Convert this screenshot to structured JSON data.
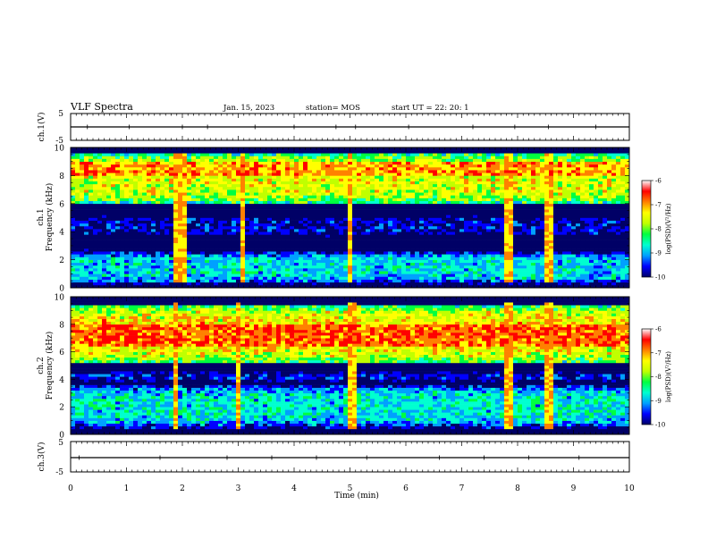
{
  "header": {
    "title": "VLF Spectra",
    "date": "Jan. 15, 2023",
    "station": "station= MOS",
    "start": "start  UT =   22: 20: 1"
  },
  "colors": {
    "cmap": [
      "#000066",
      "#0000ff",
      "#00a0ff",
      "#00ffd0",
      "#00ff40",
      "#c0ff00",
      "#ffff00",
      "#ff8000",
      "#ff0000",
      "#ffffff"
    ],
    "trace": "#000000",
    "axis": "#000000"
  },
  "chart_data": [
    {
      "type": "line",
      "name": "ch1-waveform",
      "ylabel": "ch.1(V)",
      "ylim": [
        -5,
        5
      ],
      "y_ticks": [
        "5",
        "-5"
      ],
      "xlim": [
        0,
        10
      ],
      "level": 0,
      "spikes_min": [
        0.3,
        1.05,
        2.0,
        2.45,
        3.3,
        4.0,
        4.75,
        5.1,
        6.05,
        7.2,
        7.95,
        8.55,
        9.4
      ]
    },
    {
      "type": "heatmap",
      "name": "ch1-spectrogram",
      "ylabel": "ch.1\nFrequency (kHz)",
      "ylabel_lines": [
        "ch.1",
        "Frequency (kHz)"
      ],
      "ylim": [
        0,
        10
      ],
      "y_ticks": [
        "0",
        "2",
        "4",
        "6",
        "8",
        "10"
      ],
      "xlim": [
        0,
        10
      ],
      "bands_khz": [
        {
          "from": 0.3,
          "to": 2.6,
          "log_psd": -8.6
        },
        {
          "from": 3.6,
          "to": 5.2,
          "log_psd": -9.5
        },
        {
          "from": 6.0,
          "to": 9.6,
          "log_psd": -7.3
        }
      ],
      "peak_band_khz": [
        8.0,
        9.0
      ],
      "bright_streaks_min": [
        1.9,
        2.0,
        3.1,
        5.0,
        7.85,
        8.55,
        8.6
      ],
      "colorbar": {
        "label": "log(PSD)(V²/Hz)",
        "range": [
          -10,
          -6
        ],
        "ticks": [
          "-6",
          "-7",
          "-8",
          "-9",
          "-10"
        ]
      }
    },
    {
      "type": "heatmap",
      "name": "ch2-spectrogram",
      "ylabel": "ch.2\nFrequency (kHz)",
      "ylabel_lines": [
        "ch.2",
        "Frequency (kHz)"
      ],
      "ylim": [
        0,
        10
      ],
      "y_ticks": [
        "0",
        "2",
        "4",
        "6",
        "8",
        "10"
      ],
      "xlim": [
        0,
        10
      ],
      "bands_khz": [
        {
          "from": 0.5,
          "to": 3.6,
          "log_psd": -8.5
        },
        {
          "from": 3.8,
          "to": 4.6,
          "log_psd": -9.4
        },
        {
          "from": 5.2,
          "to": 9.4,
          "log_psd": -7.1
        }
      ],
      "peak_band_khz": [
        6.5,
        8.0
      ],
      "bright_streaks_min": [
        1.9,
        3.0,
        5.05,
        7.85,
        8.55
      ],
      "colorbar": {
        "label": "log(PSD)(V²/Hz)",
        "range": [
          -10,
          -6
        ],
        "ticks": [
          "-6",
          "-7",
          "-8",
          "-9",
          "-10"
        ]
      }
    },
    {
      "type": "line",
      "name": "ch3-waveform",
      "ylabel": "ch.3(V)",
      "ylim": [
        -5,
        5
      ],
      "y_ticks": [
        "5",
        "-5"
      ],
      "xlim": [
        0,
        10
      ],
      "level": 0,
      "spikes_min": [
        0.15,
        1.6,
        2.8,
        3.6,
        4.4,
        5.3,
        6.6,
        7.4,
        8.2,
        9.1
      ],
      "xlabel": "Time (min)",
      "x_ticks": [
        "0",
        "1",
        "2",
        "3",
        "4",
        "5",
        "6",
        "7",
        "8",
        "9",
        "10"
      ]
    }
  ]
}
